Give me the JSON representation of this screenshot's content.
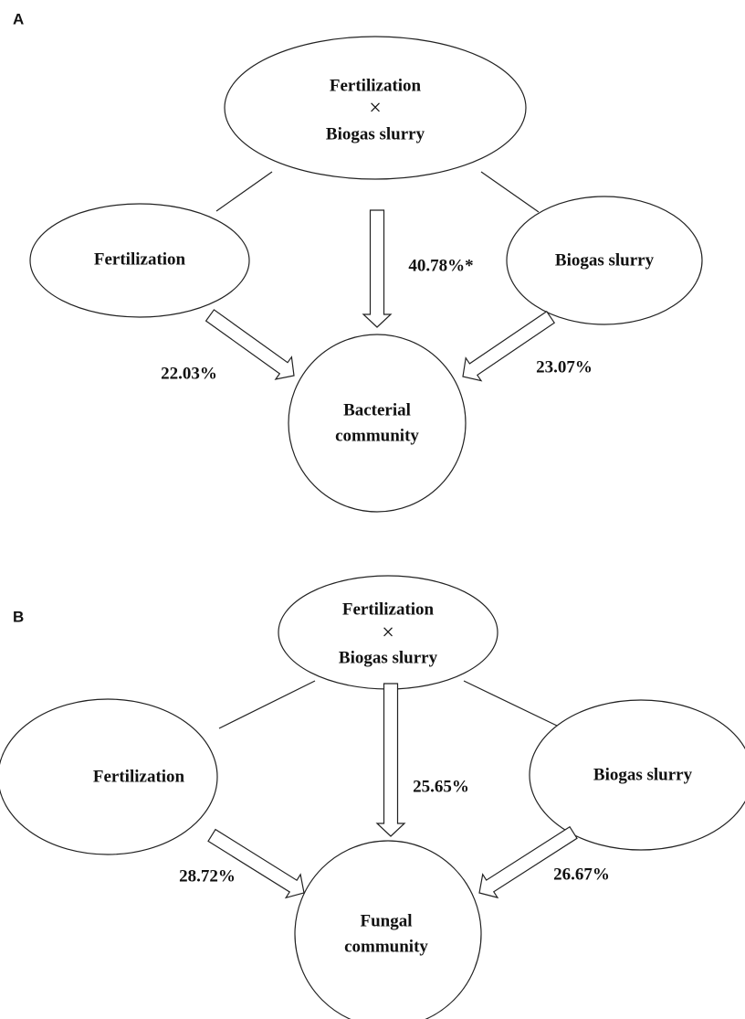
{
  "panels": [
    {
      "label": "A",
      "interaction": [
        "Fertilization",
        "×",
        "Biogas slurry"
      ],
      "left": "Fertilization",
      "right": "Biogas slurry",
      "target": [
        "Bacterial",
        "community"
      ],
      "effects": {
        "left": "22.03%",
        "center": "40.78%*",
        "right": "23.07%"
      }
    },
    {
      "label": "B",
      "interaction": [
        "Fertilization",
        "×",
        "Biogas slurry"
      ],
      "left": "Fertilization",
      "right": "Biogas slurry",
      "target": [
        "Fungal",
        "community"
      ],
      "effects": {
        "left": "28.72%",
        "center": "25.65%",
        "right": "26.67%"
      }
    }
  ]
}
